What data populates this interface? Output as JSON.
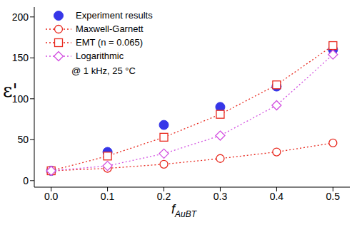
{
  "chart_data": {
    "type": "line",
    "xlabel": "f",
    "xlabel_subscript": "AuBT",
    "ylabel": "ε'",
    "annotation": "@ 1 kHz, 25 °C",
    "x": [
      0,
      0.1,
      0.2,
      0.3,
      0.4,
      0.5
    ],
    "series": [
      {
        "name": "Experiment results",
        "color": "#3636e8",
        "marker": "circle",
        "line_style": "none",
        "values": [
          12,
          35,
          68,
          90,
          115,
          160
        ]
      },
      {
        "name": "Maxwell-Garnett",
        "color": "#e8271c",
        "marker": "open_circle",
        "line_style": "dotted",
        "values": [
          12,
          15,
          20,
          27,
          35,
          46
        ]
      },
      {
        "name": "EMT (n = 0.065)",
        "color": "#e8271c",
        "marker": "open_square",
        "line_style": "dotted",
        "values": [
          12,
          30,
          53,
          81,
          117,
          165
        ]
      },
      {
        "name": "Logarithmic",
        "color": "#d24fe0",
        "marker": "open_diamond",
        "line_style": "dotted",
        "values": [
          12,
          18,
          33,
          55,
          92,
          154
        ]
      }
    ],
    "xlim": [
      -0.03,
      0.53
    ],
    "ylim": [
      -8,
      212
    ],
    "xticks": [
      {
        "value": 0,
        "label": "0.0"
      },
      {
        "value": 0.1,
        "label": "0.1"
      },
      {
        "value": 0.2,
        "label": "0.2"
      },
      {
        "value": 0.3,
        "label": "0.3"
      },
      {
        "value": 0.4,
        "label": "0.4"
      },
      {
        "value": 0.5,
        "label": "0.5"
      }
    ],
    "yticks": [
      0,
      50,
      100,
      150,
      200
    ],
    "legend": "upper left",
    "grid": false
  }
}
